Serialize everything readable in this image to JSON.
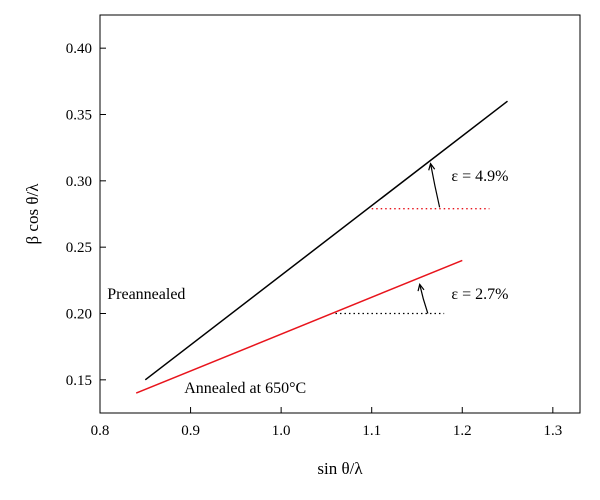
{
  "chart_data": {
    "type": "line",
    "title": "",
    "xlabel": "sin θ/λ",
    "ylabel": "β cos θ/λ",
    "xlim": [
      0.8,
      1.33
    ],
    "ylim": [
      0.125,
      0.425
    ],
    "xticks": [
      0.8,
      0.9,
      1.0,
      1.1,
      1.2,
      1.3
    ],
    "xtick_labels": [
      "0.8",
      "0.9",
      "1.0",
      "1.1",
      "1.2",
      "1.3"
    ],
    "yticks": [
      0.15,
      0.2,
      0.25,
      0.3,
      0.35,
      0.4
    ],
    "ytick_labels": [
      "0.15",
      "0.20",
      "0.25",
      "0.30",
      "0.35",
      "0.40"
    ],
    "grid": false,
    "series": [
      {
        "name": "Preannealed",
        "color": "#000000",
        "points": [
          [
            0.85,
            0.15
          ],
          [
            1.25,
            0.36
          ]
        ]
      },
      {
        "name": "Annealed at 650°C",
        "color": "#e8141c",
        "points": [
          [
            0.84,
            0.14
          ],
          [
            1.2,
            0.24
          ]
        ]
      }
    ],
    "reference_lines": [
      {
        "color": "#e8141c",
        "style": "dotted",
        "x": [
          1.1,
          1.23
        ],
        "y": 0.279
      },
      {
        "color": "#000000",
        "style": "dotted",
        "x": [
          1.06,
          1.18
        ],
        "y": 0.2
      }
    ],
    "annotations": [
      {
        "text": "ε = 4.9%",
        "x": 1.188,
        "y": 0.3
      },
      {
        "text": "ε = 2.7%",
        "x": 1.188,
        "y": 0.211
      },
      {
        "text": "Preannealed",
        "x": 0.808,
        "y": 0.211
      },
      {
        "text": "Annealed at 650°C",
        "x": 0.893,
        "y": 0.14
      }
    ],
    "arcs": [
      {
        "color": "#000000",
        "from": [
          1.175,
          0.28
        ],
        "to": [
          1.165,
          0.313
        ]
      },
      {
        "color": "#000000",
        "from": [
          1.162,
          0.2
        ],
        "to": [
          1.153,
          0.222
        ]
      }
    ]
  }
}
